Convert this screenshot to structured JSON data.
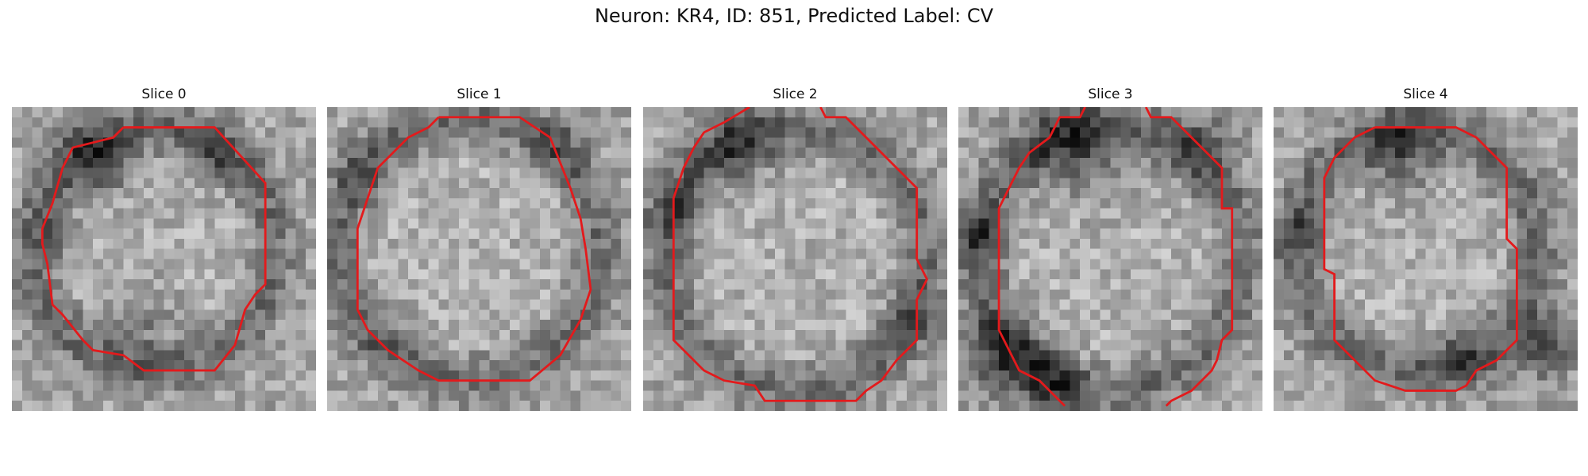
{
  "figure": {
    "title": "Neuron: KR4, ID: 851, Predicted Label: CV",
    "contour_color": "#e31a1c",
    "colormap": "grayscale",
    "slices": [
      {
        "label": "Slice 0"
      },
      {
        "label": "Slice 1"
      },
      {
        "label": "Slice 2"
      },
      {
        "label": "Slice 3"
      },
      {
        "label": "Slice 4"
      }
    ]
  }
}
